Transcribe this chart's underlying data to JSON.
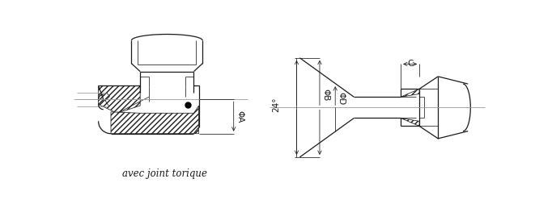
{
  "bg": "#ffffff",
  "lc": "#1a1a1a",
  "cl_color": "#999999",
  "lw": 0.9,
  "lt": 0.55,
  "lw_cl": 0.6,
  "fs": 7.5,
  "fs_annot": 8.5,
  "annot": "avec joint torique",
  "phiA": "ΦA",
  "phiB": "ΦB",
  "phiD": "ΦD",
  "dimC": "C",
  "angle": "24°"
}
